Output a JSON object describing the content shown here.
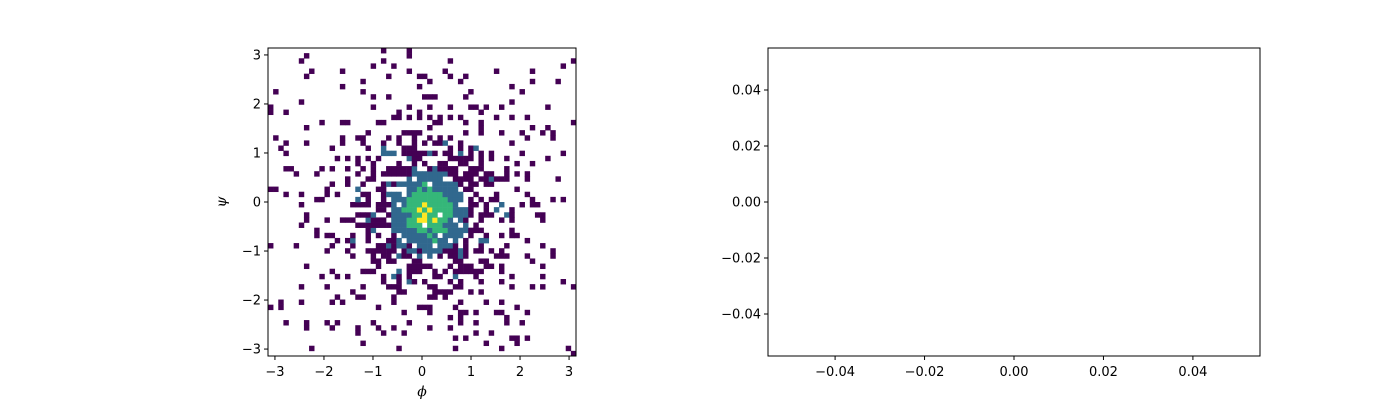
{
  "chart_data": [
    {
      "type": "heatmap",
      "title": "",
      "xlabel": "ϕ",
      "ylabel": "ψ",
      "xlim": [
        -3.14159,
        3.14159
      ],
      "ylim": [
        -3.14159,
        3.14159
      ],
      "xticks": [
        -3,
        -2,
        -1,
        0,
        1,
        2,
        3
      ],
      "yticks": [
        -3,
        -2,
        -1,
        0,
        1,
        2,
        3
      ],
      "xtick_labels": [
        "−3",
        "−2",
        "−1",
        "0",
        "1",
        "2",
        "3"
      ],
      "ytick_labels": [
        "−3",
        "−2",
        "−1",
        "0",
        "1",
        "2",
        "3"
      ],
      "colormap": "viridis",
      "bins": [
        60,
        60
      ],
      "distribution": "2D histogram of (ϕ, ψ) samples concentrated near the origin; white cells are empty bins",
      "peak_location": [
        0.15,
        -0.2
      ],
      "colors": [
        "#440154",
        "#31688e",
        "#35b779",
        "#fde725"
      ]
    },
    {
      "type": "line",
      "title": "",
      "xlabel": "",
      "ylabel": "",
      "xlim": [
        -0.055,
        0.055
      ],
      "ylim": [
        -0.055,
        0.055
      ],
      "xticks": [
        -0.04,
        -0.02,
        0.0,
        0.02,
        0.04
      ],
      "yticks": [
        -0.04,
        -0.02,
        0.0,
        0.02,
        0.04
      ],
      "xtick_labels": [
        "−0.04",
        "−0.02",
        "0.00",
        "0.02",
        "0.04"
      ],
      "ytick_labels": [
        "−0.04",
        "−0.02",
        "0.00",
        "0.02",
        "0.04"
      ],
      "series": []
    }
  ]
}
